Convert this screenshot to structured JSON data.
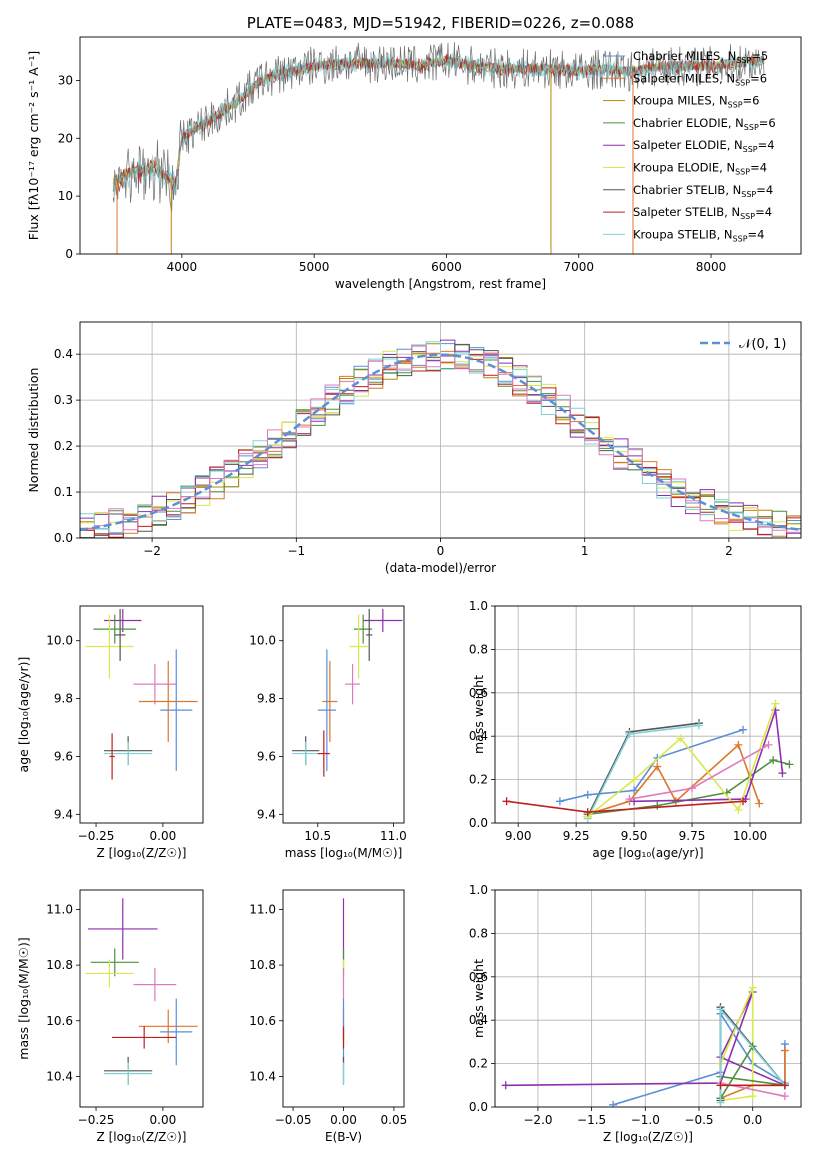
{
  "colors": {
    "Chabrier MILES": "#5b8fd6",
    "Salpeter MILES": "#e0762a",
    "Kroupa MILES": "#b8860b",
    "Chabrier ELODIE": "#4f8f3f",
    "Salpeter ELODIE": "#8e2fb0",
    "Kroupa ELODIE": "#d9e84a",
    "Chabrier STELIB": "#555555",
    "Salpeter STELIB": "#c01f1f",
    "Kroupa STELIB": "#7fd3d8",
    "pink": "#e07ac0",
    "normal": "#5b8fd6",
    "grid": "#b0b0b0"
  },
  "chart_data": [
    {
      "id": "spectrum",
      "type": "line",
      "title": "PLATE=0483, MJD=51942, FIBERID=0226, z=0.088",
      "xlabel": "wavelength [Angstrom, rest frame]",
      "ylabel": "Flux [fλ10⁻¹⁷ erg cm⁻² s⁻¹ A⁻¹]",
      "xlim": [
        3230,
        8680
      ],
      "ylim": [
        0,
        37.5
      ],
      "xticks": [
        "4000",
        "5000",
        "6000",
        "7000",
        "8000"
      ],
      "yticks": [
        "0",
        "10",
        "20",
        "30"
      ],
      "grid": false,
      "legend_position": "right",
      "legend": [
        "Chabrier MILES, N_SSP=5",
        "Salpeter MILES, N_SSP=6",
        "Kroupa MILES, N_SSP=6",
        "Chabrier ELODIE, N_SSP=6",
        "Salpeter ELODIE, N_SSP=4",
        "Kroupa ELODIE, N_SSP=4",
        "Chabrier STELIB, N_SSP=4",
        "Salpeter STELIB, N_SSP=4",
        "Kroupa STELIB, N_SSP=4"
      ],
      "legend_display": [
        {
          "name": "Chabrier MILES, N",
          "sub": "SSP",
          "tail": "=5",
          "series": "Chabrier MILES"
        },
        {
          "name": "Salpeter MILES, N",
          "sub": "SSP",
          "tail": "=6",
          "series": "Salpeter MILES"
        },
        {
          "name": "Kroupa MILES, N",
          "sub": "SSP",
          "tail": "=6",
          "series": "Kroupa MILES"
        },
        {
          "name": "Chabrier ELODIE, N",
          "sub": "SSP",
          "tail": "=6",
          "series": "Chabrier ELODIE"
        },
        {
          "name": "Salpeter ELODIE, N",
          "sub": "SSP",
          "tail": "=4",
          "series": "Salpeter ELODIE"
        },
        {
          "name": "Kroupa ELODIE, N",
          "sub": "SSP",
          "tail": "=4",
          "series": "Kroupa ELODIE"
        },
        {
          "name": "Chabrier STELIB, N",
          "sub": "SSP",
          "tail": "=4",
          "series": "Chabrier STELIB"
        },
        {
          "name": "Salpeter STELIB, N",
          "sub": "SSP",
          "tail": "=4",
          "series": "Salpeter STELIB"
        },
        {
          "name": "Kroupa STELIB, N",
          "sub": "SSP",
          "tail": "=4",
          "series": "Kroupa STELIB"
        }
      ],
      "continuum": {
        "wavelength": [
          3480,
          3600,
          3700,
          3800,
          3900,
          3950,
          4000,
          4100,
          4200,
          4300,
          4400,
          4500,
          4600,
          4800,
          5000,
          5200,
          5400,
          5600,
          5800,
          6000,
          6200,
          6400,
          6600,
          6800,
          7000,
          7200,
          7400,
          7600,
          7800,
          8000,
          8200,
          8400
        ],
        "flux": [
          12,
          14,
          14.5,
          15,
          13,
          12,
          20,
          21.5,
          23,
          24.5,
          26,
          28,
          30,
          31.5,
          32.5,
          33,
          33,
          33,
          32.5,
          33.5,
          32.5,
          32,
          32,
          32,
          31.5,
          32,
          31.5,
          32.5,
          32.5,
          32.5,
          33,
          33.5
        ]
      },
      "noise_by_series": {
        "Chabrier STELIB": 3.5,
        "Salpeter STELIB": 1.2,
        "Kroupa STELIB": 1.6,
        "Chabrier MILES": 0.8,
        "Salpeter MILES": 0.8,
        "Kroupa MILES": 0.8,
        "Chabrier ELODIE": 0.8,
        "Salpeter ELODIE": 0.8,
        "Kroupa ELODIE": 0.8
      },
      "spikes": [
        {
          "x": 3510,
          "series": "Salpeter MILES"
        },
        {
          "x": 3920,
          "series": "Kroupa MILES"
        },
        {
          "x": 6790,
          "series": "Kroupa MILES"
        },
        {
          "x": 7410,
          "series": "Salpeter MILES"
        }
      ]
    },
    {
      "id": "residuals",
      "type": "histogram",
      "xlabel": "(data-model)/error",
      "ylabel": "Normed distribution",
      "xlim": [
        -2.5,
        2.5
      ],
      "ylim": [
        0,
        0.47
      ],
      "xticks": [
        "−2",
        "−1",
        "0",
        "1",
        "2"
      ],
      "yticks": [
        "0.0",
        "0.1",
        "0.2",
        "0.3",
        "0.4"
      ],
      "grid": true,
      "legend_position": "top-right",
      "legend": [
        "𝒩(0, 1)"
      ],
      "bin_width": 0.1,
      "reference_curve": "normal(0,1)"
    },
    {
      "id": "z-age",
      "type": "errorbar",
      "xlabel": "Z [log₁₀(Z/Z☉)]",
      "ylabel": "age  [log₁₀(age/yr)]",
      "xlim": [
        -0.31,
        0.15
      ],
      "ylim": [
        9.37,
        10.12
      ],
      "xticks": [
        "−0.25",
        "0.00"
      ],
      "yticks": [
        "9.4",
        "9.6",
        "9.8",
        "10.0"
      ],
      "grid": false,
      "points": [
        {
          "series": "Salpeter ELODIE",
          "x": -0.15,
          "y": 10.07,
          "xerr": 0.07,
          "yerr": 0.04
        },
        {
          "series": "Chabrier ELODIE",
          "x": -0.18,
          "y": 10.04,
          "xerr": 0.08,
          "yerr": 0.05
        },
        {
          "series": "Kroupa ELODIE",
          "x": -0.2,
          "y": 9.98,
          "xerr": 0.09,
          "yerr": 0.11
        },
        {
          "series": "Chabrier STELIB",
          "x": -0.16,
          "y": 10.02,
          "xerr": 0.02,
          "yerr": 0.09
        },
        {
          "series": "pink",
          "x": -0.03,
          "y": 9.85,
          "xerr": 0.08,
          "yerr": 0.07
        },
        {
          "series": "Salpeter MILES",
          "x": 0.02,
          "y": 9.79,
          "xerr": 0.11,
          "yerr": 0.14
        },
        {
          "series": "Chabrier MILES",
          "x": 0.05,
          "y": 9.76,
          "xerr": 0.06,
          "yerr": 0.21
        },
        {
          "series": "Chabrier STELIB",
          "x": -0.13,
          "y": 9.62,
          "xerr": 0.09,
          "yerr": 0.05
        },
        {
          "series": "Kroupa STELIB",
          "x": -0.13,
          "y": 9.61,
          "xerr": 0.09,
          "yerr": 0.04
        },
        {
          "series": "Salpeter STELIB",
          "x": -0.19,
          "y": 9.6,
          "xerr": 0.01,
          "yerr": 0.08
        }
      ]
    },
    {
      "id": "mass-age",
      "type": "errorbar",
      "xlabel": "mass [log₁₀(M/M☉)]",
      "ylabel": "",
      "xlim": [
        10.27,
        11.07
      ],
      "ylim": [
        9.37,
        10.12
      ],
      "xticks": [
        "10.5",
        "11.0"
      ],
      "yticks": [
        "9.4",
        "9.6",
        "9.8",
        "10.0"
      ],
      "grid": false,
      "points": [
        {
          "series": "Salpeter ELODIE",
          "x": 10.93,
          "y": 10.07,
          "xerr": 0.13,
          "yerr": 0.04
        },
        {
          "series": "Chabrier ELODIE",
          "x": 10.8,
          "y": 10.04,
          "xerr": 0.06,
          "yerr": 0.05
        },
        {
          "series": "Kroupa ELODIE",
          "x": 10.77,
          "y": 9.98,
          "xerr": 0.06,
          "yerr": 0.11
        },
        {
          "series": "Chabrier STELIB",
          "x": 10.84,
          "y": 10.02,
          "xerr": 0.02,
          "yerr": 0.09
        },
        {
          "series": "pink",
          "x": 10.73,
          "y": 9.85,
          "xerr": 0.05,
          "yerr": 0.07
        },
        {
          "series": "Salpeter MILES",
          "x": 10.58,
          "y": 9.79,
          "xerr": 0.05,
          "yerr": 0.14
        },
        {
          "series": "Chabrier MILES",
          "x": 10.56,
          "y": 9.76,
          "xerr": 0.06,
          "yerr": 0.21
        },
        {
          "series": "Chabrier STELIB",
          "x": 10.42,
          "y": 9.62,
          "xerr": 0.09,
          "yerr": 0.05
        },
        {
          "series": "Kroupa STELIB",
          "x": 10.42,
          "y": 9.61,
          "xerr": 0.09,
          "yerr": 0.04
        },
        {
          "series": "Salpeter STELIB",
          "x": 10.54,
          "y": 9.61,
          "xerr": 0.04,
          "yerr": 0.08
        }
      ]
    },
    {
      "id": "weight-age",
      "type": "line",
      "xlabel": "age  [log₁₀(age/yr)]",
      "ylabel": "mass weight",
      "xlim": [
        8.9,
        10.22
      ],
      "ylim": [
        0,
        1
      ],
      "xticks": [
        "9.00",
        "9.25",
        "9.50",
        "9.75",
        "10.00"
      ],
      "yticks": [
        "0.0",
        "0.2",
        "0.4",
        "0.6",
        "0.8",
        "1.0"
      ],
      "grid": true,
      "series": [
        {
          "name": "Chabrier STELIB",
          "x": [
            9.3,
            9.48,
            9.78
          ],
          "y": [
            0.03,
            0.42,
            0.46
          ]
        },
        {
          "name": "Kroupa STELIB",
          "x": [
            9.3,
            9.48,
            9.78
          ],
          "y": [
            0.02,
            0.41,
            0.45
          ]
        },
        {
          "name": "Chabrier MILES",
          "x": [
            9.18,
            9.3,
            9.5,
            9.6,
            9.97
          ],
          "y": [
            0.1,
            0.13,
            0.15,
            0.3,
            0.43
          ]
        },
        {
          "name": "Salpeter MILES",
          "x": [
            9.3,
            9.48,
            9.6,
            9.68,
            9.95,
            10.04
          ],
          "y": [
            0.04,
            0.1,
            0.26,
            0.1,
            0.36,
            0.09
          ]
        },
        {
          "name": "Chabrier ELODIE",
          "x": [
            9.3,
            9.6,
            9.9,
            10.1,
            10.17
          ],
          "y": [
            0.04,
            0.08,
            0.14,
            0.29,
            0.27
          ]
        },
        {
          "name": "Salpeter ELODIE",
          "x": [
            9.5,
            9.98,
            10.11,
            10.14
          ],
          "y": [
            0.1,
            0.11,
            0.52,
            0.23
          ]
        },
        {
          "name": "Kroupa ELODIE",
          "x": [
            9.3,
            9.5,
            9.7,
            9.95,
            10.11
          ],
          "y": [
            0.03,
            0.2,
            0.39,
            0.06,
            0.55
          ]
        },
        {
          "name": "pink",
          "x": [
            9.48,
            9.75,
            10.08
          ],
          "y": [
            0.11,
            0.16,
            0.36
          ]
        },
        {
          "name": "Salpeter STELIB",
          "x": [
            8.95,
            9.3,
            9.97
          ],
          "y": [
            0.1,
            0.05,
            0.1
          ]
        }
      ]
    },
    {
      "id": "z-mass",
      "type": "errorbar",
      "xlabel": "Z [log₁₀(Z/Z☉)]",
      "ylabel": "mass [log₁₀(M/M☉)]",
      "xlim": [
        -0.31,
        0.15
      ],
      "ylim": [
        10.29,
        11.07
      ],
      "xticks": [
        "−0.25",
        "0.00"
      ],
      "yticks": [
        "10.4",
        "10.6",
        "10.8",
        "11.0"
      ],
      "grid": false,
      "points": [
        {
          "series": "Salpeter ELODIE",
          "x": -0.15,
          "y": 10.93,
          "xerr": 0.13,
          "yerr": 0.11
        },
        {
          "series": "Chabrier ELODIE",
          "x": -0.18,
          "y": 10.81,
          "xerr": 0.09,
          "yerr": 0.05
        },
        {
          "series": "Kroupa ELODIE",
          "x": -0.2,
          "y": 10.77,
          "xerr": 0.09,
          "yerr": 0.05
        },
        {
          "series": "pink",
          "x": -0.03,
          "y": 10.73,
          "xerr": 0.08,
          "yerr": 0.06
        },
        {
          "series": "Salpeter MILES",
          "x": 0.02,
          "y": 10.58,
          "xerr": 0.11,
          "yerr": 0.06
        },
        {
          "series": "Chabrier MILES",
          "x": 0.05,
          "y": 10.56,
          "xerr": 0.06,
          "yerr": 0.12
        },
        {
          "series": "Salpeter STELIB",
          "x": -0.07,
          "y": 10.54,
          "xerr": 0.12,
          "yerr": 0.04
        },
        {
          "series": "Chabrier STELIB",
          "x": -0.13,
          "y": 10.42,
          "xerr": 0.09,
          "yerr": 0.05
        },
        {
          "series": "Kroupa STELIB",
          "x": -0.13,
          "y": 10.41,
          "xerr": 0.09,
          "yerr": 0.04
        }
      ]
    },
    {
      "id": "ebv-mass",
      "type": "errorbar",
      "xlabel": "E(B-V)",
      "ylabel": "",
      "xlim": [
        -0.06,
        0.06
      ],
      "ylim": [
        10.29,
        11.07
      ],
      "xticks": [
        "−0.05",
        "0.00",
        "0.05"
      ],
      "yticks": [
        "10.4",
        "10.6",
        "10.8",
        "11.0"
      ],
      "grid": false,
      "points": [
        {
          "series": "Salpeter ELODIE",
          "x": 0,
          "y": 10.93,
          "xerr": 0,
          "yerr": 0.11
        },
        {
          "series": "Chabrier ELODIE",
          "x": 0,
          "y": 10.81,
          "xerr": 0,
          "yerr": 0.05
        },
        {
          "series": "Kroupa ELODIE",
          "x": 0,
          "y": 10.77,
          "xerr": 0,
          "yerr": 0.05
        },
        {
          "series": "pink",
          "x": 0,
          "y": 10.73,
          "xerr": 0,
          "yerr": 0.06
        },
        {
          "series": "Salpeter MILES",
          "x": 0,
          "y": 10.58,
          "xerr": 0,
          "yerr": 0.06
        },
        {
          "series": "Chabrier MILES",
          "x": 0,
          "y": 10.56,
          "xerr": 0,
          "yerr": 0.12
        },
        {
          "series": "Salpeter STELIB",
          "x": 0,
          "y": 10.54,
          "xerr": 0,
          "yerr": 0.04
        },
        {
          "series": "Chabrier STELIB",
          "x": 0,
          "y": 10.42,
          "xerr": 0,
          "yerr": 0.05
        },
        {
          "series": "Kroupa STELIB",
          "x": 0,
          "y": 10.41,
          "xerr": 0,
          "yerr": 0.04
        }
      ]
    },
    {
      "id": "weight-z",
      "type": "line",
      "xlabel": "Z [log₁₀(Z/Z☉)]",
      "ylabel": "mass weight",
      "xlim": [
        -2.4,
        0.45
      ],
      "ylim": [
        0,
        1
      ],
      "xticks": [
        "−2.0",
        "−1.5",
        "−1.0",
        "−0.5",
        "0.0"
      ],
      "yticks": [
        "0.0",
        "0.2",
        "0.4",
        "0.6",
        "0.8",
        "1.0"
      ],
      "grid": true,
      "series": [
        {
          "name": "Chabrier MILES",
          "x": [
            -1.3,
            -0.3,
            -0.3,
            0,
            0.3,
            0.3
          ],
          "y": [
            0.01,
            0.16,
            0.43,
            0.2,
            0.11,
            0.29
          ]
        },
        {
          "name": "Salpeter MILES",
          "x": [
            -0.3,
            0,
            0.3,
            0.3
          ],
          "y": [
            0.04,
            0.1,
            0.1,
            0.26
          ]
        },
        {
          "name": "Salpeter ELODIE",
          "x": [
            -2.3,
            -0.3,
            0,
            -0.3,
            0.3
          ],
          "y": [
            0.1,
            0.11,
            0.53,
            0.23,
            0.1
          ]
        },
        {
          "name": "Kroupa ELODIE",
          "x": [
            -0.3,
            0,
            0,
            -0.3
          ],
          "y": [
            0.03,
            0.05,
            0.55,
            0.2
          ]
        },
        {
          "name": "Chabrier ELODIE",
          "x": [
            -0.3,
            0,
            0.3,
            -0.3
          ],
          "y": [
            0.04,
            0.28,
            0.1,
            0.14
          ]
        },
        {
          "name": "Chabrier STELIB",
          "x": [
            -0.3,
            -0.3,
            0.3
          ],
          "y": [
            0.03,
            0.46,
            0.1
          ]
        },
        {
          "name": "Kroupa STELIB",
          "x": [
            -0.3,
            -0.3,
            0.3
          ],
          "y": [
            0.02,
            0.45,
            0.1
          ]
        },
        {
          "name": "pink",
          "x": [
            -0.3,
            0.3
          ],
          "y": [
            0.11,
            0.05
          ]
        },
        {
          "name": "Salpeter STELIB",
          "x": [
            -0.3,
            0.3
          ],
          "y": [
            0.1,
            0.1
          ]
        }
      ]
    }
  ]
}
